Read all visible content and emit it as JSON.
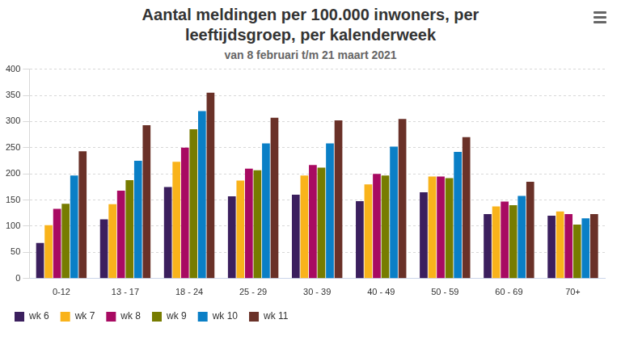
{
  "chart_data": {
    "type": "bar",
    "title": "Aantal meldingen per 100.000 inwoners, per leeftijdsgroep, per kalenderweek",
    "subtitle": "van 8 februari t/m 21 maart 2021",
    "categories": [
      "0-12",
      "13 - 17",
      "18 - 24",
      "25 - 29",
      "30 - 39",
      "40 - 49",
      "50 - 59",
      "60 - 69",
      "70+"
    ],
    "series": [
      {
        "name": "wk 6",
        "color": "#3b1f5e",
        "values": [
          68,
          113,
          175,
          157,
          160,
          148,
          165,
          123,
          120
        ]
      },
      {
        "name": "wk 7",
        "color": "#f9b31b",
        "values": [
          102,
          142,
          223,
          187,
          197,
          180,
          195,
          138,
          128
        ]
      },
      {
        "name": "wk 8",
        "color": "#a80a62",
        "values": [
          133,
          168,
          250,
          210,
          217,
          200,
          195,
          147,
          123
        ]
      },
      {
        "name": "wk 9",
        "color": "#777c00",
        "values": [
          143,
          188,
          285,
          207,
          212,
          197,
          192,
          140,
          103
        ]
      },
      {
        "name": "wk 10",
        "color": "#0a7fc6",
        "values": [
          197,
          225,
          320,
          258,
          258,
          252,
          242,
          158,
          115
        ]
      },
      {
        "name": "wk 11",
        "color": "#6a3128",
        "values": [
          243,
          293,
          355,
          307,
          302,
          305,
          270,
          185,
          123
        ]
      }
    ],
    "ylim": [
      0,
      400
    ],
    "yticks": [
      0,
      50,
      100,
      150,
      200,
      250,
      300,
      350,
      400
    ],
    "grid": true,
    "legend": "bottom"
  }
}
